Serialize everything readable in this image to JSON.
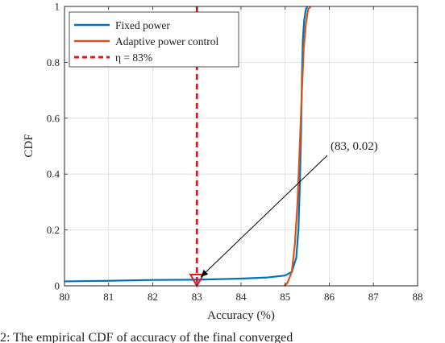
{
  "chart_data": {
    "type": "line",
    "xlabel": "Accuracy (%)",
    "ylabel": "CDF",
    "xlim": [
      80,
      88
    ],
    "ylim": [
      0,
      1
    ],
    "xticks": [
      "80",
      "81",
      "82",
      "83",
      "84",
      "85",
      "86",
      "87",
      "88"
    ],
    "yticks": [
      "0",
      "0.2",
      "0.4",
      "0.6",
      "0.8",
      "1"
    ],
    "grid": true,
    "legend_position": "top-left",
    "series": [
      {
        "name": "Fixed power",
        "color": "#0072BD",
        "x": [
          80.0,
          81.0,
          82.0,
          83.0,
          84.0,
          84.6,
          85.0,
          85.15,
          85.25,
          85.3,
          85.33,
          85.36,
          85.38,
          85.4,
          85.43,
          85.47,
          85.5
        ],
        "y": [
          0.016,
          0.018,
          0.021,
          0.022,
          0.026,
          0.03,
          0.037,
          0.05,
          0.1,
          0.2,
          0.35,
          0.55,
          0.75,
          0.88,
          0.95,
          0.99,
          1.0
        ]
      },
      {
        "name": "Adaptive power control",
        "color": "#D95319",
        "x": [
          84.98,
          85.05,
          85.15,
          85.22,
          85.28,
          85.33,
          85.38,
          85.42,
          85.47,
          85.52,
          85.58
        ],
        "y": [
          0.0,
          0.01,
          0.05,
          0.15,
          0.3,
          0.5,
          0.7,
          0.85,
          0.94,
          0.99,
          1.0
        ]
      }
    ],
    "threshold": {
      "label": "η = 83%",
      "x": 83,
      "color": "#E8141E"
    },
    "annotation": {
      "text": "(83, 0.02)",
      "point": [
        83,
        0.02
      ]
    },
    "caption_fragment": "2: The empirical CDF of accuracy of the final converged"
  }
}
